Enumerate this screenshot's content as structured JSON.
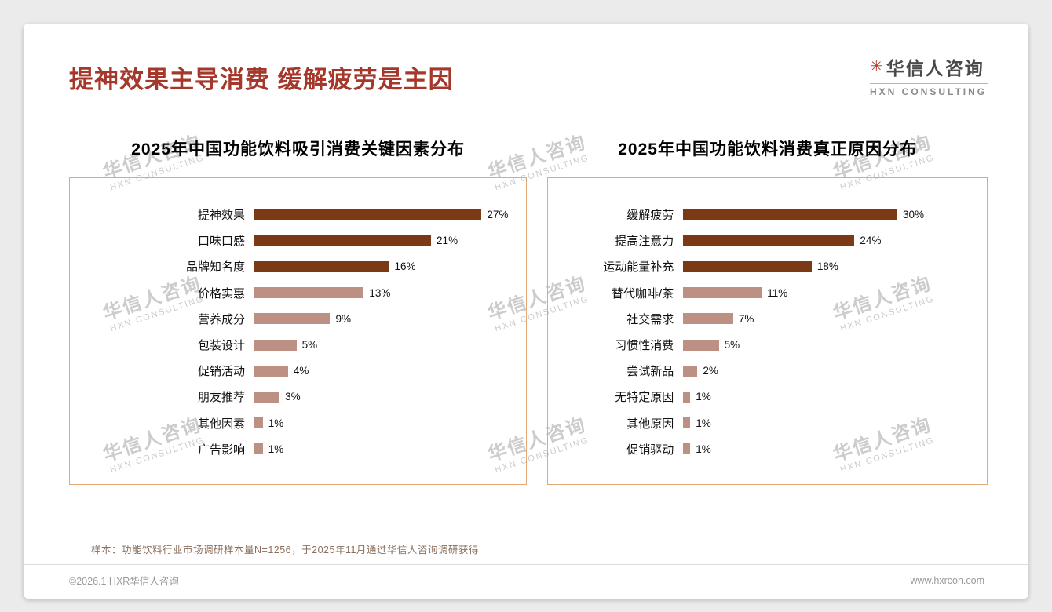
{
  "header": {
    "title": "提神效果主导消费 缓解疲劳是主因"
  },
  "logo": {
    "mark": "✳",
    "name": "华信人咨询",
    "subtitle": "HXN CONSULTING"
  },
  "watermark": {
    "line1": "华信人咨询",
    "line2": "HXN CONSULTING"
  },
  "colors": {
    "title_red": "#A5372B",
    "bar_dark": "#7B3A15",
    "bar_light": "#BC9184",
    "panel_border": "#E3A878",
    "logo_red": "#C03A2B"
  },
  "chart_data": [
    {
      "type": "bar",
      "orientation": "horizontal",
      "title": "2025年中国功能饮料吸引消费关键因素分布",
      "categories": [
        "提神效果",
        "口味口感",
        "品牌知名度",
        "价格实惠",
        "营养成分",
        "包装设计",
        "促销活动",
        "朋友推荐",
        "其他因素",
        "广告影响"
      ],
      "values": [
        27,
        21,
        16,
        13,
        9,
        5,
        4,
        3,
        1,
        1
      ],
      "unit": "%",
      "xmax": 31,
      "dark_count": 3,
      "grid": false,
      "legend": false
    },
    {
      "type": "bar",
      "orientation": "horizontal",
      "title": "2025年中国功能饮料消费真正原因分布",
      "categories": [
        "缓解疲劳",
        "提高注意力",
        "运动能量补充",
        "替代咖啡/茶",
        "社交需求",
        "习惯性消费",
        "尝试新品",
        "无特定原因",
        "其他原因",
        "促销驱动"
      ],
      "values": [
        30,
        24,
        18,
        11,
        7,
        5,
        2,
        1,
        1,
        1
      ],
      "unit": "%",
      "xmax": 41,
      "dark_count": 3,
      "grid": false,
      "legend": false
    }
  ],
  "footnote": "样本：功能饮料行业市场调研样本量N=1256，于2025年11月通过华信人咨询调研获得",
  "footer": {
    "left": "©2026.1 HXR华信人咨询",
    "right": "www.hxrcon.com"
  }
}
